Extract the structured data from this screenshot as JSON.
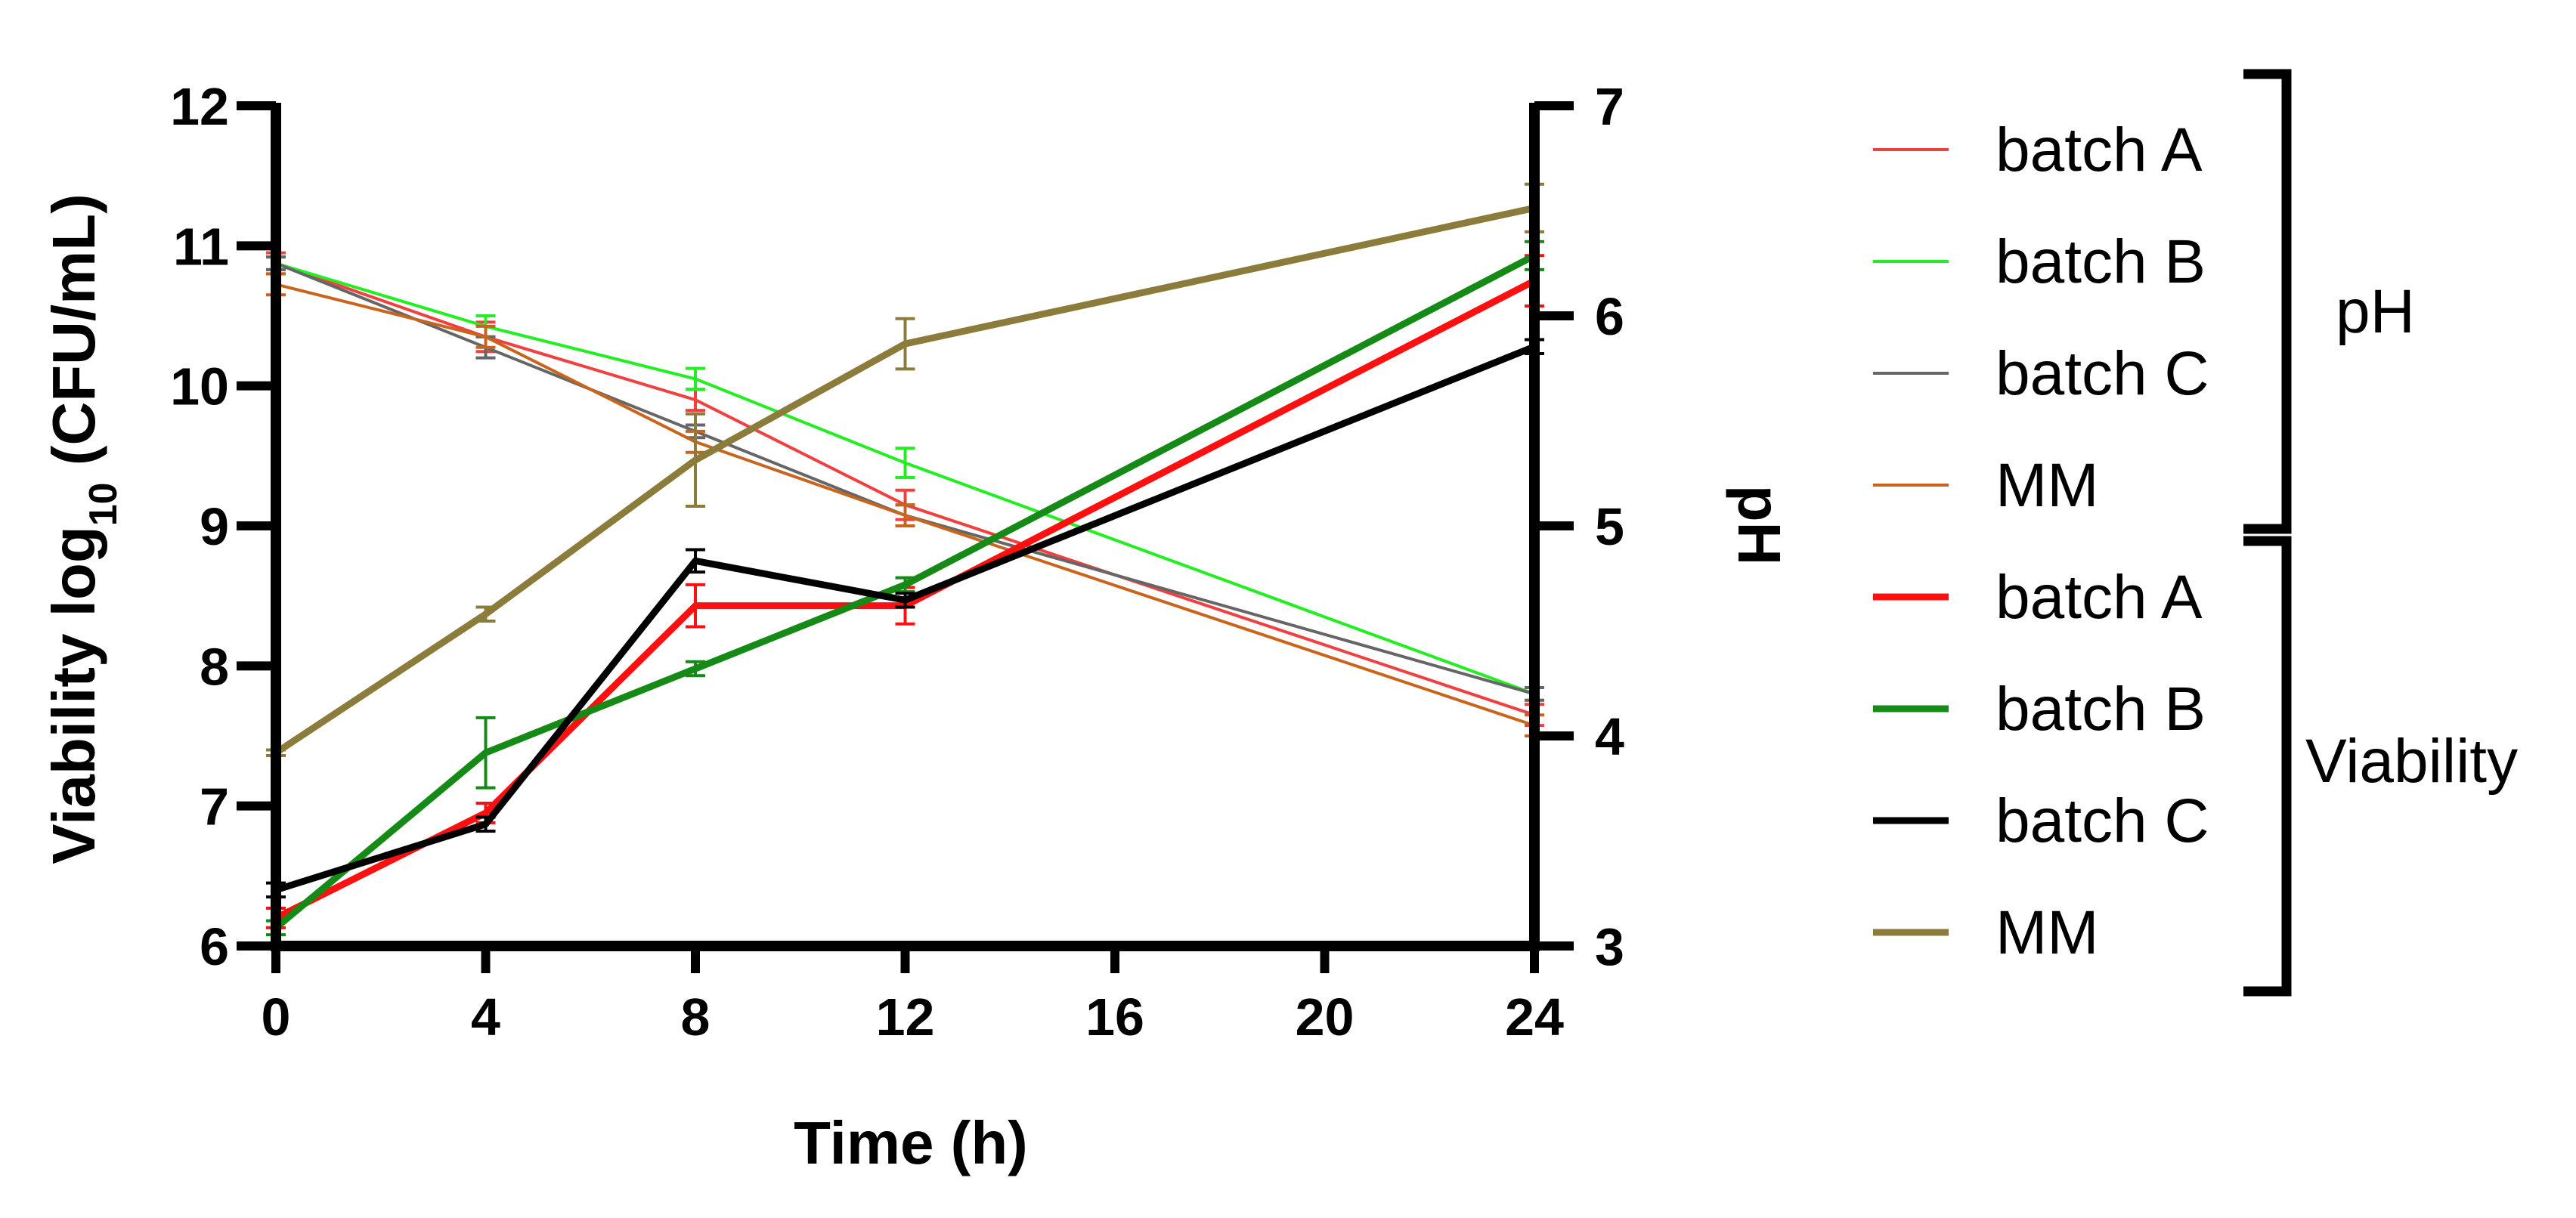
{
  "chart_data": {
    "type": "line",
    "xlabel": "Time (h)",
    "ylabel_left": {
      "prefix": "Viability log",
      "sub": "10",
      "suffix": " (CFU/mL)"
    },
    "ylabel_right": "pH",
    "x_ticks": [
      "0",
      "4",
      "8",
      "12",
      "16",
      "20",
      "24"
    ],
    "y_left_ticks": [
      "6",
      "7",
      "8",
      "9",
      "10",
      "11",
      "12"
    ],
    "y_right_ticks": [
      "3",
      "4",
      "5",
      "6",
      "7"
    ],
    "xlim": [
      0,
      24
    ],
    "ylim_left": [
      6,
      12
    ],
    "ylim_right": [
      3,
      7
    ],
    "x": [
      0,
      4,
      8,
      12,
      24
    ],
    "ph_series": [
      {
        "name": "batch A",
        "color": "#f04040",
        "axis": "right",
        "values": [
          6.25,
          5.9,
          5.6,
          5.1,
          4.1
        ],
        "errors": [
          0.05,
          0.07,
          0.05,
          0.07,
          0.05
        ]
      },
      {
        "name": "batch B",
        "color": "#22ee22",
        "axis": "right",
        "values": [
          6.25,
          5.95,
          5.7,
          5.3,
          4.2
        ],
        "errors": [
          0.03,
          0.05,
          0.05,
          0.07,
          0.03
        ]
      },
      {
        "name": "batch C",
        "color": "#666666",
        "axis": "right",
        "values": [
          6.25,
          5.85,
          5.45,
          5.05,
          4.2
        ],
        "errors": [
          0.03,
          0.05,
          0.03,
          0.05,
          0.03
        ]
      },
      {
        "name": "MM",
        "color": "#c8641e",
        "axis": "right",
        "values": [
          6.15,
          5.9,
          5.4,
          5.05,
          4.05
        ],
        "errors": [
          0.05,
          0.05,
          0.05,
          0.05,
          0.05
        ]
      }
    ],
    "viability_series": [
      {
        "name": "batch A",
        "color": "#ff1010",
        "axis": "left",
        "values": [
          6.2,
          6.95,
          8.43,
          8.43,
          10.75
        ],
        "errors": [
          0.07,
          0.07,
          0.15,
          0.13,
          0.18
        ]
      },
      {
        "name": "batch B",
        "color": "#168a16",
        "axis": "left",
        "values": [
          6.13,
          7.38,
          7.98,
          8.58,
          10.93
        ],
        "errors": [
          0.05,
          0.25,
          0.05,
          0.05,
          0.1
        ]
      },
      {
        "name": "batch C",
        "color": "#000000",
        "axis": "left",
        "values": [
          6.4,
          6.87,
          8.75,
          8.47,
          10.28
        ],
        "errors": [
          0.05,
          0.05,
          0.08,
          0.05,
          0.05
        ]
      },
      {
        "name": "MM",
        "color": "#8c7c3c",
        "axis": "left",
        "values": [
          7.38,
          8.37,
          9.47,
          10.3,
          11.27
        ],
        "errors": [
          0.02,
          0.05,
          0.33,
          0.18,
          0.17
        ]
      }
    ],
    "groups": {
      "ph": "pH",
      "viability": "Viability"
    }
  }
}
